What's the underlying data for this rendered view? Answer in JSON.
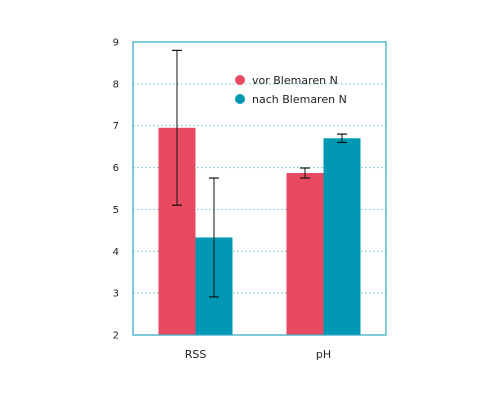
{
  "chart_data": {
    "type": "bar",
    "categories": [
      "RSS",
      "pH"
    ],
    "series": [
      {
        "name": "vor Blemaren N",
        "values": [
          6.95,
          5.87
        ],
        "error": [
          1.85,
          0.12
        ],
        "color": "#e84a62"
      },
      {
        "name": "nach Blemaren N",
        "values": [
          4.33,
          6.7
        ],
        "error": [
          1.42,
          0.1
        ],
        "color": "#0098b3"
      }
    ],
    "ylim": [
      2,
      9
    ],
    "yticks": [
      2,
      3,
      4,
      5,
      6,
      7,
      8,
      9
    ],
    "grid": "horizontal dotted",
    "legend": "top-right",
    "frame_color": "#2aa6c0",
    "grid_color": "#5bbfd3"
  }
}
